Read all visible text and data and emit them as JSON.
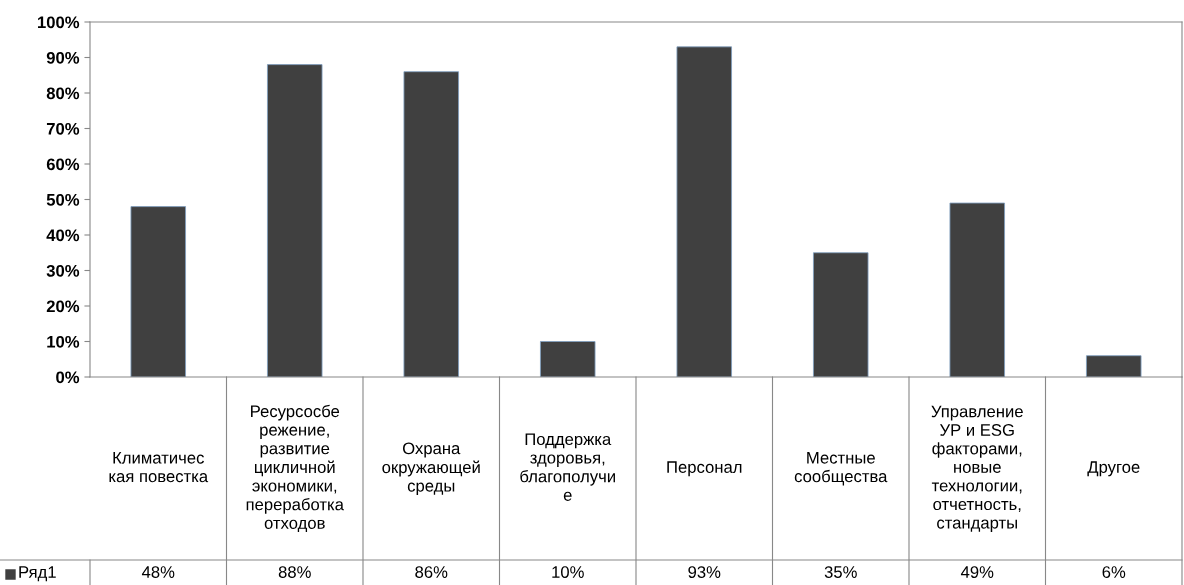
{
  "chart_data": {
    "type": "bar",
    "categories": [
      "Климатичес\nкая повестка",
      "Ресурсосбе\nрежение,\nразвитие\nцикличной\nэкономики,\nпереработка\nотходов",
      "Охрана\nокружающей\nсреды",
      "Поддержка\nздоровья,\nблагополучи\nе",
      "Персонал",
      "Местные\nсообщества",
      "Управление\nУР и ESG\nфакторами,\nновые\nтехнологии,\nотчетность,\nстандарты",
      "Другое"
    ],
    "series": [
      {
        "name": "Ряд1",
        "color": "#404040",
        "values": [
          48,
          88,
          86,
          10,
          93,
          35,
          49,
          6
        ],
        "value_labels": [
          "48%",
          "88%",
          "86%",
          "10%",
          "93%",
          "35%",
          "49%",
          "6%"
        ]
      }
    ],
    "ylim": [
      0,
      100
    ],
    "yticks": [
      {
        "value": 0,
        "label": "0%"
      },
      {
        "value": 10,
        "label": "10%"
      },
      {
        "value": 20,
        "label": "20%"
      },
      {
        "value": 30,
        "label": "30%"
      },
      {
        "value": 40,
        "label": "40%"
      },
      {
        "value": 50,
        "label": "50%"
      },
      {
        "value": 60,
        "label": "60%"
      },
      {
        "value": 70,
        "label": "70%"
      },
      {
        "value": 80,
        "label": "80%"
      },
      {
        "value": 90,
        "label": "90%"
      },
      {
        "value": 100,
        "label": "100%"
      }
    ],
    "grid": false
  }
}
